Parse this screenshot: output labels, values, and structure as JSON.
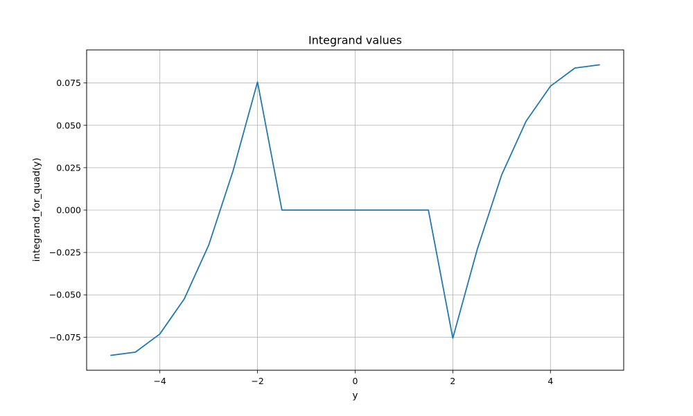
{
  "chart_data": {
    "type": "line",
    "title": "Integrand values",
    "xlabel": "y",
    "ylabel": "integrand_for_quad(y)",
    "xlim": [
      -5.5,
      5.5
    ],
    "ylim": [
      -0.0945,
      0.0945
    ],
    "xticks": [
      -4,
      -2,
      0,
      2,
      4
    ],
    "xtick_labels": [
      "−4",
      "−2",
      "0",
      "2",
      "4"
    ],
    "yticks": [
      -0.075,
      -0.05,
      -0.025,
      0.0,
      0.025,
      0.05,
      0.075
    ],
    "ytick_labels": [
      "−0.075",
      "−0.050",
      "−0.025",
      "0.000",
      "0.025",
      "0.050",
      "0.075"
    ],
    "grid": true,
    "series": [
      {
        "color": "#1f77b4",
        "x": [
          -5.0,
          -4.5,
          -4.0,
          -3.5,
          -3.0,
          -2.5,
          -2.0,
          -1.5,
          -1.0,
          -0.5,
          0.0,
          0.5,
          1.0,
          1.5,
          2.0,
          2.5,
          3.0,
          3.5,
          4.0,
          4.5,
          5.0
        ],
        "y": [
          -0.0857,
          -0.0838,
          -0.0731,
          -0.0524,
          -0.0207,
          0.0232,
          0.0756,
          0.0,
          0.0,
          0.0,
          0.0,
          0.0,
          0.0,
          0.0,
          -0.0756,
          -0.0232,
          0.0207,
          0.0524,
          0.0731,
          0.0838,
          0.0857
        ]
      }
    ]
  }
}
